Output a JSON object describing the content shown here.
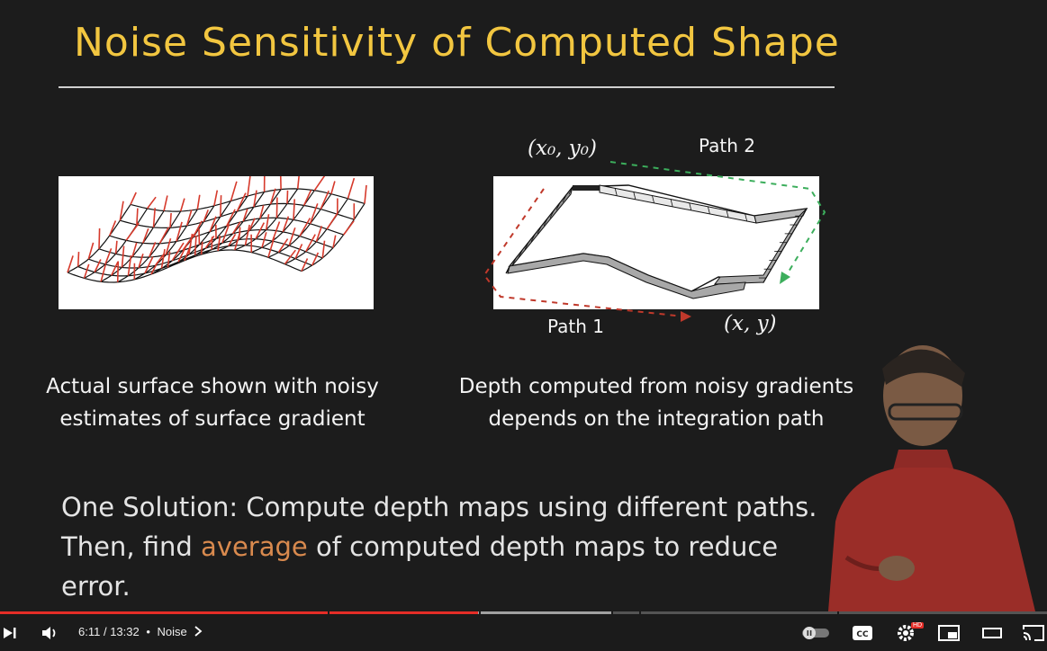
{
  "slide": {
    "title": "Noise Sensitivity of Computed Shape",
    "left_caption_line1": "Actual surface shown with noisy",
    "left_caption_line2": "estimates of surface gradient",
    "right_caption_line1": "Depth computed from noisy gradients",
    "right_caption_line2": "depends on the integration path",
    "start_point": "(x₀, y₀)",
    "end_point": "(x, y)",
    "path2_label": "Path 2",
    "path1_label": "Path 1",
    "solution_part1": "One Solution: Compute depth maps using different paths. Then, find ",
    "solution_highlight": "average",
    "solution_part2": " of computed depth maps to reduce error.",
    "colors": {
      "title": "#f2c640",
      "highlight": "#d98a4e",
      "path1": "#c0392b",
      "path2": "#3cae5c"
    }
  },
  "player": {
    "current_time": "6:11",
    "separator": " / ",
    "duration": "13:32",
    "bullet": "•",
    "chapter": "Noise",
    "played_fraction": 0.457,
    "buffered_fraction": 0.585,
    "hd_badge": "HD",
    "icons": [
      "next-icon",
      "volume-icon",
      "chevron-right-icon",
      "autoplay-toggle-icon",
      "subtitles-icon",
      "settings-icon",
      "miniplayer-icon",
      "theater-icon",
      "cast-icon"
    ]
  }
}
